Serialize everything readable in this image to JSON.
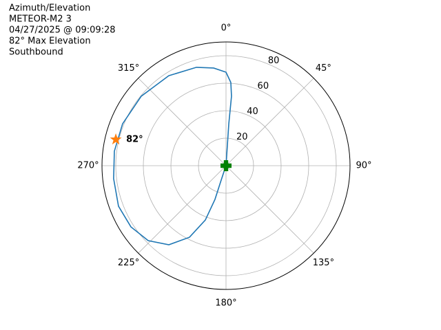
{
  "chart_data": {
    "type": "polar",
    "title": [
      "Azimuth/Elevation",
      "METEOR-M2 3",
      "04/27/2025 @ 09:09:28",
      "82° Max Elevation",
      "Southbound"
    ],
    "rlim": [
      0,
      90
    ],
    "rticks": [
      20,
      40,
      60,
      80
    ],
    "thetaticks": [
      {
        "value": 0,
        "label": "0°"
      },
      {
        "value": 45,
        "label": "45°"
      },
      {
        "value": 90,
        "label": "90°"
      },
      {
        "value": 135,
        "label": "135°"
      },
      {
        "value": 180,
        "label": "180°"
      },
      {
        "value": 225,
        "label": "225°"
      },
      {
        "value": 270,
        "label": "270°"
      },
      {
        "value": 315,
        "label": "315°"
      }
    ],
    "grid": true,
    "series": [
      {
        "color": "#1f77b4",
        "marker": "line",
        "theta": [
          0,
          3.8,
          4.5,
          3.3,
          0,
          352.8,
          343.3,
          327.6,
          309.4,
          292.1,
          277.4,
          263.4,
          249.3,
          237.2,
          226.0,
          215.8,
          207.0,
          200.8,
          198.1,
          198.4,
          200
        ],
        "r": [
          0,
          30.6,
          50.7,
          60.6,
          68,
          71.6,
          74.7,
          77.5,
          79.6,
          81.0,
          81.7,
          82.1,
          83.4,
          82.1,
          78.5,
          70.9,
          58.4,
          42.3,
          25.8,
          12.6,
          2
        ]
      },
      {
        "color": "#ff7f0e",
        "marker": "star",
        "theta": [
          283.4
        ],
        "r": [
          82.2
        ],
        "value_labels": [
          "82°"
        ]
      },
      {
        "color": "#008000",
        "marker": "plus",
        "theta": [
          0
        ],
        "r": [
          0
        ]
      }
    ]
  }
}
